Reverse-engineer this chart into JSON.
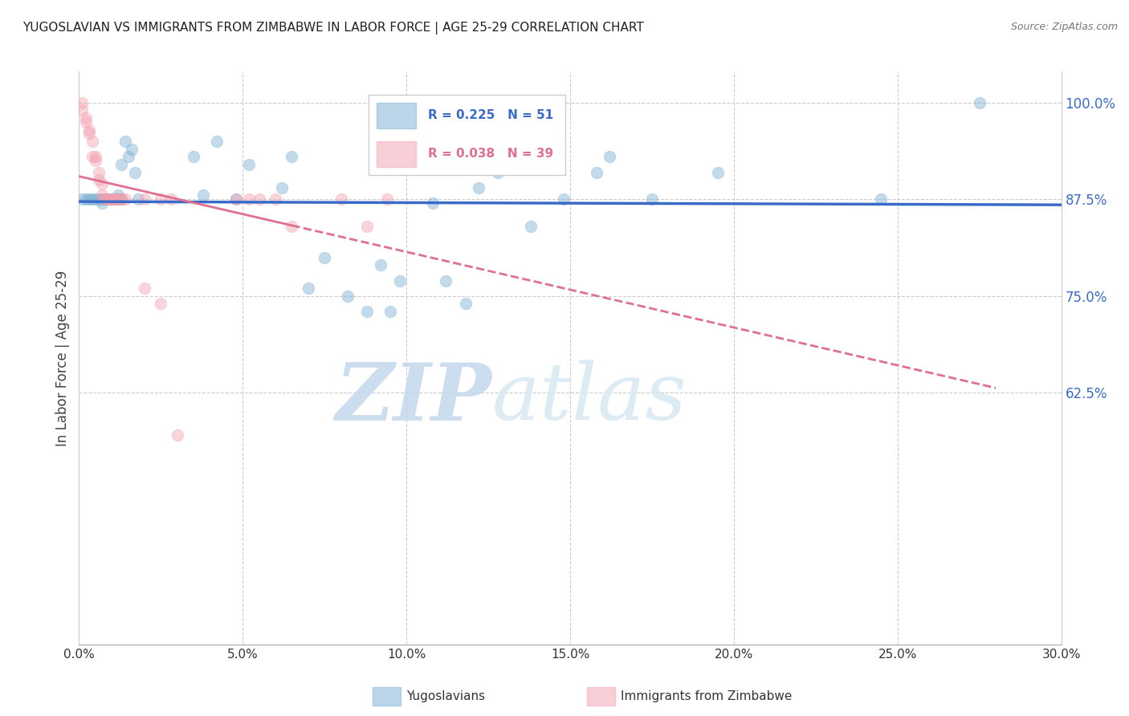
{
  "title": "YUGOSLAVIAN VS IMMIGRANTS FROM ZIMBABWE IN LABOR FORCE | AGE 25-29 CORRELATION CHART",
  "source": "Source: ZipAtlas.com",
  "ylabel": "In Labor Force | Age 25-29",
  "legend1_label": "Yugoslavians",
  "legend2_label": "Immigrants from Zimbabwe",
  "R1": 0.225,
  "N1": 51,
  "R2": 0.038,
  "N2": 39,
  "color1": "#7BAFD4",
  "color2": "#F4A0B0",
  "trendline1_color": "#3A6BC9",
  "trendline2_color": "#E07090",
  "xlim": [
    0.0,
    0.3
  ],
  "ylim": [
    0.3,
    1.04
  ],
  "yticks": [
    0.625,
    0.75,
    0.875,
    1.0
  ],
  "xticks": [
    0.0,
    0.05,
    0.1,
    0.15,
    0.2,
    0.25,
    0.3
  ],
  "ytick_labels": [
    "62.5%",
    "75.0%",
    "87.5%",
    "100.0%"
  ],
  "xtick_labels": [
    "0.0%",
    "5.0%",
    "10.0%",
    "15.0%",
    "20.0%",
    "25.0%",
    "30.0%"
  ],
  "blue_x": [
    0.001,
    0.002,
    0.003,
    0.004,
    0.005,
    0.006,
    0.007,
    0.007,
    0.008,
    0.009,
    0.01,
    0.01,
    0.011,
    0.011,
    0.012,
    0.012,
    0.013,
    0.013,
    0.014,
    0.015,
    0.016,
    0.017,
    0.018,
    0.035,
    0.038,
    0.042,
    0.048,
    0.052,
    0.062,
    0.065,
    0.07,
    0.075,
    0.082,
    0.088,
    0.092,
    0.095,
    0.098,
    0.108,
    0.112,
    0.118,
    0.122,
    0.128,
    0.132,
    0.138,
    0.148,
    0.158,
    0.162,
    0.175,
    0.195,
    0.245,
    0.275
  ],
  "blue_y": [
    0.875,
    0.875,
    0.875,
    0.875,
    0.875,
    0.875,
    0.875,
    0.87,
    0.875,
    0.875,
    0.875,
    0.875,
    0.875,
    0.875,
    0.88,
    0.875,
    0.92,
    0.875,
    0.95,
    0.93,
    0.94,
    0.91,
    0.875,
    0.93,
    0.88,
    0.95,
    0.875,
    0.92,
    0.89,
    0.93,
    0.76,
    0.8,
    0.75,
    0.73,
    0.79,
    0.73,
    0.77,
    0.87,
    0.77,
    0.74,
    0.89,
    0.91,
    0.93,
    0.84,
    0.875,
    0.91,
    0.93,
    0.875,
    0.91,
    0.875,
    1.0
  ],
  "pink_x": [
    0.001,
    0.001,
    0.002,
    0.002,
    0.003,
    0.003,
    0.004,
    0.004,
    0.005,
    0.005,
    0.006,
    0.006,
    0.007,
    0.007,
    0.008,
    0.008,
    0.009,
    0.01,
    0.01,
    0.011,
    0.011,
    0.012,
    0.013,
    0.013,
    0.014,
    0.02,
    0.025,
    0.028,
    0.048,
    0.052,
    0.055,
    0.06,
    0.065,
    0.08,
    0.088,
    0.094,
    0.02,
    0.025,
    0.03
  ],
  "pink_y": [
    1.0,
    0.99,
    0.98,
    0.975,
    0.965,
    0.96,
    0.95,
    0.93,
    0.93,
    0.925,
    0.91,
    0.9,
    0.895,
    0.88,
    0.875,
    0.875,
    0.875,
    0.875,
    0.875,
    0.875,
    0.875,
    0.875,
    0.875,
    0.875,
    0.875,
    0.875,
    0.875,
    0.875,
    0.875,
    0.875,
    0.875,
    0.875,
    0.84,
    0.875,
    0.84,
    0.875,
    0.76,
    0.74,
    0.57
  ],
  "watermark_zip": "ZIP",
  "watermark_atlas": "atlas",
  "watermark_color_zip": "#C5D8EE",
  "watermark_color_atlas": "#C5D8EE",
  "background_color": "#FFFFFF",
  "grid_color": "#CCCCCC"
}
